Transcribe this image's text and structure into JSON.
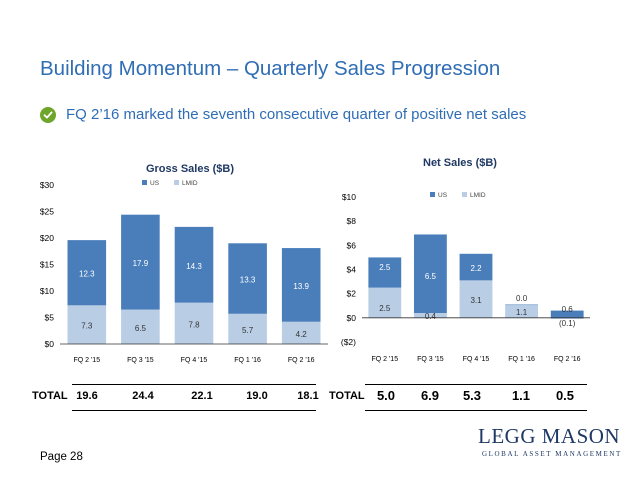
{
  "title": "Building Momentum – Quarterly Sales Progression",
  "bullet": "FQ 2’16 marked the seventh consecutive quarter of positive net sales",
  "colors": {
    "us": "#4a7ebb",
    "lmid": "#b9cde5",
    "title": "#2f6db5",
    "check": "#6fa52a"
  },
  "chart_data": [
    {
      "type": "bar",
      "stacked": true,
      "title": "Gross Sales ($B)",
      "categories": [
        "FQ 2 '15",
        "FQ 3 '15",
        "FQ 4 '15",
        "FQ 1 '16",
        "FQ 2 '16"
      ],
      "series": [
        {
          "name": "LMID",
          "values": [
            7.3,
            6.5,
            7.8,
            5.7,
            4.2
          ]
        },
        {
          "name": "US",
          "values": [
            12.3,
            17.9,
            14.3,
            13.3,
            13.9
          ]
        }
      ],
      "legend": [
        "US",
        "LMID"
      ],
      "legend_position": "top",
      "yticks": [
        "$0",
        "$5",
        "$10",
        "$15",
        "$20",
        "$25",
        "$30"
      ],
      "ylim": [
        0,
        30
      ],
      "totals_label": "TOTAL",
      "totals": [
        "19.6",
        "24.4",
        "22.1",
        "19.0",
        "18.1"
      ]
    },
    {
      "type": "bar",
      "stacked": true,
      "title": "Net Sales ($B)",
      "categories": [
        "FQ 2 '15",
        "FQ 3 '15",
        "FQ 4 '15",
        "FQ 1 '16",
        "FQ 2 '16"
      ],
      "series": [
        {
          "name": "LMID",
          "values": [
            2.5,
            0.4,
            3.1,
            1.1,
            -0.1
          ]
        },
        {
          "name": "US",
          "values": [
            2.5,
            6.5,
            2.2,
            0.0,
            0.6
          ]
        }
      ],
      "value_labels": {
        "LMID": [
          "2.5",
          "0.4",
          "3.1",
          "1.1",
          "(0.1)"
        ],
        "US": [
          "2.5",
          "6.5",
          "2.2",
          "0.0",
          "0.6"
        ]
      },
      "legend": [
        "US",
        "LMID"
      ],
      "legend_position": "top",
      "yticks": [
        "($2)",
        "$0",
        "$2",
        "$4",
        "$6",
        "$8",
        "$10"
      ],
      "ylim": [
        -2,
        10
      ],
      "totals_label": "TOTAL",
      "totals": [
        "5.0",
        "6.9",
        "5.3",
        "1.1",
        "0.5"
      ]
    }
  ],
  "footer": {
    "page": "Page 28",
    "logo": "LEGG MASON",
    "logo_sub": "GLOBAL ASSET MANAGEMENT"
  }
}
